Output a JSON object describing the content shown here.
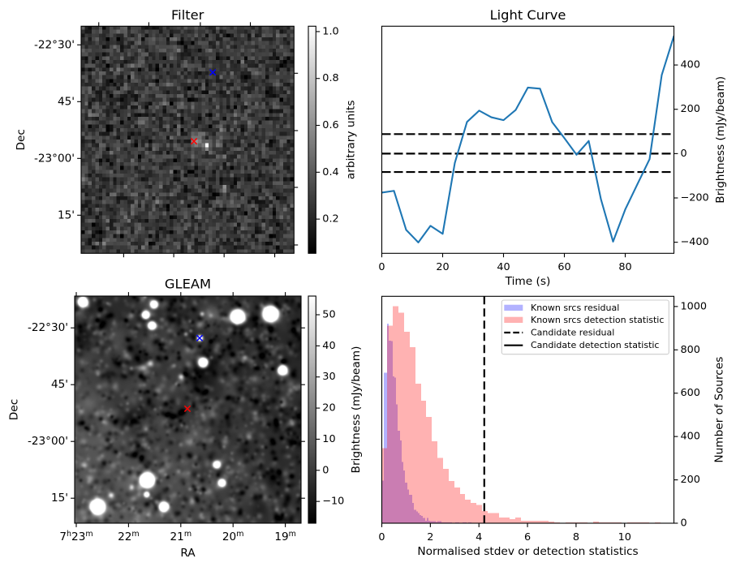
{
  "colors": {
    "light_curve_line": "#1f77b4",
    "threshold_lines": "#000000",
    "marker_blue": "#0000ff",
    "marker_red": "#ff0000",
    "known_residual": "#0000ff",
    "known_detection": "#ff0000",
    "candidate": "#000000",
    "legend_edge": "#cccccc"
  },
  "chart_data": [
    {
      "id": "filter",
      "type": "heatmap",
      "title": "Filter",
      "xlabel": "",
      "ylabel": "Dec",
      "grid_size": {
        "cols": 60,
        "rows": 60
      },
      "colormap": "gray",
      "noise": {
        "mean": 0.27,
        "std": 0.085
      },
      "hotspot": [
        {
          "col": 35.5,
          "row": 31.5,
          "amplitude": 0.7,
          "sigma": 0.7
        },
        {
          "col": 32.5,
          "row": 30.5,
          "amplitude": 0.4,
          "sigma": 1.0
        },
        {
          "col": 33.0,
          "row": 28.5,
          "amplitude": 0.12,
          "sigma": 1.2
        }
      ],
      "left_ticks": [
        {
          "row": 4.93,
          "label": "-22°30'"
        },
        {
          "row": 19.93,
          "label": "45'"
        },
        {
          "row": 34.93,
          "label": "-23°00'"
        },
        {
          "row": 49.93,
          "label": "15'"
        }
      ],
      "right_tick_rows": [
        12.43,
        27.58,
        42.58,
        57.79
      ],
      "top_tick_cols": [
        4.97,
        19.08,
        33.6,
        47.7
      ],
      "bottom_tick_cols": [
        11.98,
        26.1,
        40.3,
        54.57
      ],
      "markers": [
        {
          "name": "blue",
          "symbol": "x",
          "color": "#0000ff",
          "col": 37.1,
          "row": 12.2
        },
        {
          "name": "red",
          "symbol": "x",
          "color": "#ff0000",
          "col": 31.8,
          "row": 30.4
        }
      ],
      "colorbar": {
        "label": "arbitrary units",
        "range": [
          0.054,
          1.023
        ],
        "ticks": [
          {
            "value": 0.2,
            "label": "0.2"
          },
          {
            "value": 0.4,
            "label": "0.4"
          },
          {
            "value": 0.6,
            "label": "0.6"
          },
          {
            "value": 0.8,
            "label": "0.8"
          },
          {
            "value": 1.0,
            "label": "1.0"
          }
        ]
      }
    },
    {
      "id": "light_curve",
      "type": "line",
      "title": "Light Curve",
      "xlabel": "Time (s)",
      "ylabel": "Brightness (mJy/beam)",
      "ylabel_side": "right",
      "grid": false,
      "xlim": [
        0,
        96
      ],
      "ylim": [
        -450,
        575
      ],
      "x": [
        0,
        4,
        8,
        12,
        16,
        20,
        24,
        28,
        32,
        36,
        40,
        44,
        48,
        52,
        56,
        60,
        64,
        68,
        72,
        76,
        80,
        84,
        88,
        92,
        96
      ],
      "series": [
        {
          "name": "light curve",
          "values": [
            -176,
            -168,
            -344,
            -401,
            -326,
            -362,
            -42,
            143,
            194,
            164,
            151,
            197,
            298,
            293,
            142,
            70,
            -5,
            57,
            -205,
            -397,
            -252,
            -138,
            -25,
            355,
            531
          ]
        }
      ],
      "hlines": [
        {
          "name": "upper-threshold",
          "y": 88,
          "style": "dashed"
        },
        {
          "name": "mean-level",
          "y": 0,
          "style": "dashed"
        },
        {
          "name": "lower-threshold",
          "y": -83,
          "style": "dashed"
        }
      ],
      "xticks": [
        {
          "value": 0,
          "label": "0"
        },
        {
          "value": 20,
          "label": "20"
        },
        {
          "value": 40,
          "label": "40"
        },
        {
          "value": 60,
          "label": "60"
        },
        {
          "value": 80,
          "label": "80"
        }
      ],
      "yticks": [
        {
          "value": -400,
          "label": "−400"
        },
        {
          "value": -200,
          "label": "−200"
        },
        {
          "value": 0,
          "label": "0"
        },
        {
          "value": 200,
          "label": "200"
        },
        {
          "value": 400,
          "label": "400"
        }
      ]
    },
    {
      "id": "gleam",
      "type": "heatmap",
      "title": "GLEAM",
      "xlabel": "RA",
      "ylabel": "Dec",
      "colormap": "gray",
      "ra_range": [
        23.031,
        18.699
      ],
      "dec_range": [
        -22.36,
        -23.36
      ],
      "background": {
        "level": -7,
        "diffuse_peak": 16,
        "diffuse_corner": "bottom-left"
      },
      "xticks": [
        {
          "ra": 23,
          "parts": [
            [
              "7",
              "h"
            ],
            [
              "23",
              "m"
            ]
          ]
        },
        {
          "ra": 22,
          "parts": [
            [
              "22",
              "m"
            ]
          ]
        },
        {
          "ra": 21,
          "parts": [
            [
              "21",
              "m"
            ]
          ]
        },
        {
          "ra": 20,
          "parts": [
            [
              "20",
              "m"
            ]
          ]
        },
        {
          "ra": 19,
          "parts": [
            [
              "19",
              "m"
            ]
          ]
        }
      ],
      "yticks": [
        {
          "dec": -22.5,
          "label": "-22°30'"
        },
        {
          "dec": -22.75,
          "label": "45'"
        },
        {
          "dec": -23.0,
          "label": "-23°00'"
        },
        {
          "dec": -23.25,
          "label": "15'"
        }
      ],
      "sources": [
        {
          "ra": 22.88,
          "dec": -22.384,
          "peak": 300,
          "sigma_arcmin": 0.71
        },
        {
          "ra": 21.52,
          "dec": -22.395,
          "peak": 200,
          "sigma_arcmin": 0.6
        },
        {
          "ra": 21.68,
          "dec": -22.441,
          "peak": 200,
          "sigma_arcmin": 0.6
        },
        {
          "ra": 21.56,
          "dec": -22.488,
          "peak": 220,
          "sigma_arcmin": 0.6
        },
        {
          "ra": 19.92,
          "dec": -22.449,
          "peak": 400,
          "sigma_arcmin": 0.95
        },
        {
          "ra": 19.29,
          "dec": -22.437,
          "peak": 450,
          "sigma_arcmin": 1.02
        },
        {
          "ra": 20.64,
          "dec": -22.544,
          "peak": 120,
          "sigma_arcmin": 0.48
        },
        {
          "ra": 20.58,
          "dec": -22.651,
          "peak": 250,
          "sigma_arcmin": 0.71
        },
        {
          "ra": 19.06,
          "dec": -22.685,
          "peak": 250,
          "sigma_arcmin": 0.71
        },
        {
          "ra": 21.0,
          "dec": -22.714,
          "peak": 45,
          "sigma_arcmin": 0.5
        },
        {
          "ra": 21.59,
          "dec": -22.656,
          "peak": 40,
          "sigma_arcmin": 0.55
        },
        {
          "ra": 20.32,
          "dec": -23.101,
          "peak": 160,
          "sigma_arcmin": 0.6
        },
        {
          "ra": 20.22,
          "dec": -23.181,
          "peak": 170,
          "sigma_arcmin": 0.6
        },
        {
          "ra": 21.65,
          "dec": -23.169,
          "peak": 450,
          "sigma_arcmin": 0.95
        },
        {
          "ra": 21.66,
          "dec": -23.232,
          "peak": 120,
          "sigma_arcmin": 0.48
        },
        {
          "ra": 21.33,
          "dec": -23.286,
          "peak": 250,
          "sigma_arcmin": 0.71
        },
        {
          "ra": 22.6,
          "dec": -23.286,
          "peak": 450,
          "sigma_arcmin": 0.95
        },
        {
          "ra": 21.95,
          "dec": -23.201,
          "peak": 40,
          "sigma_arcmin": 0.5
        },
        {
          "ra": 22.34,
          "dec": -23.235,
          "peak": 40,
          "sigma_arcmin": 0.5
        },
        {
          "ra": 19.78,
          "dec": -22.628,
          "peak": 35,
          "sigma_arcmin": 0.5
        },
        {
          "ra": 20.91,
          "dec": -22.526,
          "peak": 35,
          "sigma_arcmin": 0.4
        },
        {
          "ra": 20.6,
          "dec": -22.437,
          "peak": 35,
          "sigma_arcmin": 0.4
        }
      ],
      "markers": [
        {
          "name": "blue",
          "symbol": "x",
          "color": "#0000ff",
          "ra": 20.64,
          "dec": -22.545
        },
        {
          "name": "red",
          "symbol": "x",
          "color": "#ff0000",
          "ra": 20.873,
          "dec": -22.856
        }
      ],
      "colorbar": {
        "label": "Brightness (mJy/beam)",
        "range": [
          -17,
          56
        ],
        "ticks": [
          {
            "value": -10,
            "label": "−10"
          },
          {
            "value": 0,
            "label": "0"
          },
          {
            "value": 10,
            "label": "10"
          },
          {
            "value": 20,
            "label": "20"
          },
          {
            "value": 30,
            "label": "30"
          },
          {
            "value": 40,
            "label": "40"
          },
          {
            "value": 50,
            "label": "50"
          }
        ]
      }
    },
    {
      "id": "histogram",
      "type": "bar",
      "title": "",
      "xlabel": "Normalised stdev or detection statistics",
      "ylabel": "Number of Sources",
      "ylabel_side": "right",
      "grid": false,
      "xlim": [
        0,
        12.03
      ],
      "ylim": [
        0,
        1047
      ],
      "xticks": [
        {
          "value": 0,
          "label": "0"
        },
        {
          "value": 2,
          "label": "2"
        },
        {
          "value": 4,
          "label": "4"
        },
        {
          "value": 6,
          "label": "6"
        },
        {
          "value": 8,
          "label": "8"
        },
        {
          "value": 10,
          "label": "10"
        }
      ],
      "yticks": [
        {
          "value": 0,
          "label": "0"
        },
        {
          "value": 200,
          "label": "200"
        },
        {
          "value": 400,
          "label": "400"
        },
        {
          "value": 600,
          "label": "600"
        },
        {
          "value": 800,
          "label": "800"
        },
        {
          "value": 1000,
          "label": "1000"
        }
      ],
      "series": [
        {
          "name": "Known srcs residual",
          "color": "#0000ff",
          "alpha": 0.3,
          "bin_start": 0,
          "bin_width": 0.074,
          "counts": [
            196,
            695,
            695,
            920,
            843,
            840,
            678,
            672,
            549,
            427,
            381,
            283,
            243,
            187,
            156,
            131,
            131,
            94,
            62,
            54,
            46,
            37,
            34,
            25,
            12,
            25,
            12,
            10,
            10,
            10,
            6,
            10,
            10,
            4,
            4,
            4,
            4,
            4,
            4,
            0,
            0,
            4,
            4,
            0,
            0,
            4,
            4,
            0,
            4,
            4
          ]
        },
        {
          "name": "Known srcs detection statistic",
          "color": "#ff0000",
          "alpha": 0.3,
          "bin_start": 0,
          "bin_width": 0.2294,
          "counts": [
            346,
            911,
            1001,
            971,
            884,
            813,
            644,
            566,
            491,
            378,
            301,
            250,
            195,
            165,
            135,
            109,
            94,
            84,
            56,
            46,
            46,
            26,
            26,
            19,
            26,
            11,
            11,
            11,
            11,
            11,
            7,
            4,
            0,
            4,
            4,
            4,
            4,
            0,
            7,
            4,
            4,
            4,
            4,
            0,
            4,
            4,
            4,
            4,
            0,
            4
          ]
        }
      ],
      "vlines": [
        {
          "name": "Candidate residual",
          "x": 4.22,
          "style": "dashed"
        }
      ],
      "legend": {
        "position": "top-right",
        "entries": [
          {
            "label": "Known srcs residual",
            "kind": "patch",
            "color": "#0000ff",
            "alpha": 0.3
          },
          {
            "label": "Known srcs detection statistic",
            "kind": "patch",
            "color": "#ff0000",
            "alpha": 0.3
          },
          {
            "label": "Candidate residual",
            "kind": "line",
            "style": "dashed",
            "color": "#000000"
          },
          {
            "label": "Candidate detection statistic",
            "kind": "line",
            "style": "solid",
            "color": "#000000"
          }
        ]
      }
    }
  ]
}
